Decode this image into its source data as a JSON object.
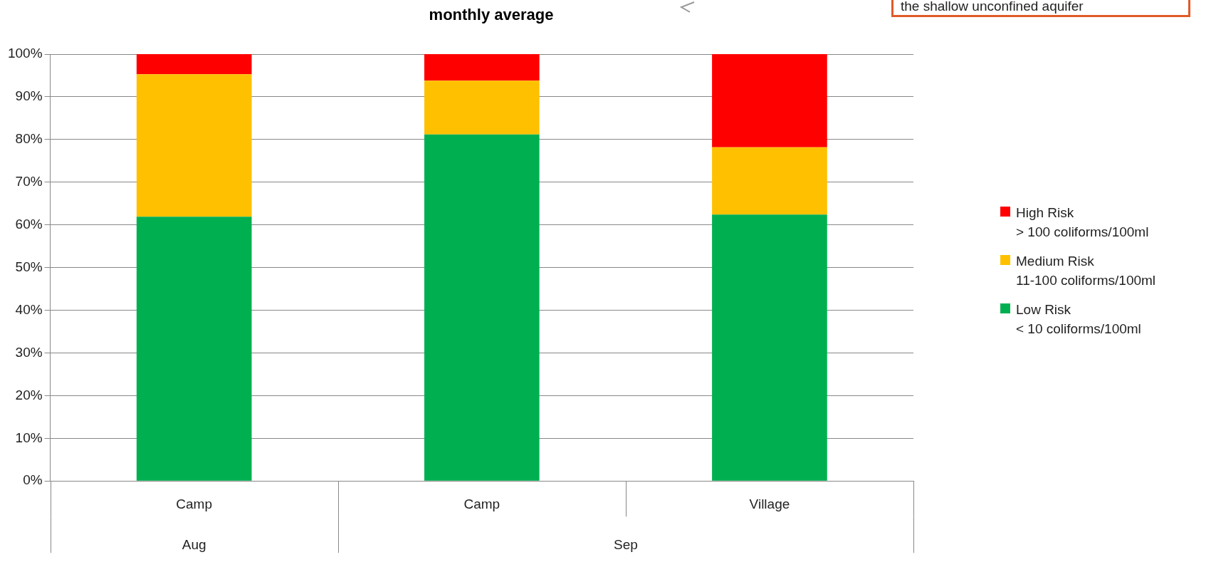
{
  "chart_data": {
    "type": "bar",
    "title": "monthly average",
    "categories": [
      "Camp",
      "Camp",
      "Village"
    ],
    "series": [
      {
        "name": "Low Risk\n< 10 coliforms/100ml",
        "color": "#00b050",
        "values": [
          61.9,
          81.2,
          62.4
        ]
      },
      {
        "name": "Medium Risk\n11-100 coliforms/100ml",
        "color": "#ffc000",
        "values": [
          33.4,
          12.6,
          15.8
        ]
      },
      {
        "name": "High Risk\n> 100 coliforms/100ml",
        "color": "#ff0000",
        "values": [
          4.7,
          6.2,
          21.8
        ]
      }
    ],
    "stacked": true,
    "ylim": [
      0,
      100
    ],
    "yticks": [
      {
        "value": 0,
        "label": "0%"
      },
      {
        "value": 10,
        "label": "10%"
      },
      {
        "value": 20,
        "label": "20%"
      },
      {
        "value": 30,
        "label": "30%"
      },
      {
        "value": 40,
        "label": "40%"
      },
      {
        "value": 50,
        "label": "50%"
      },
      {
        "value": 60,
        "label": "60%"
      },
      {
        "value": 70,
        "label": "70%"
      },
      {
        "value": 80,
        "label": "80%"
      },
      {
        "value": 90,
        "label": "90%"
      },
      {
        "value": 100,
        "label": "100%"
      }
    ],
    "grid": "y",
    "legend": "right",
    "annotations": [
      "Aug",
      "Sep",
      "the shallow unconfined aquifer"
    ]
  }
}
